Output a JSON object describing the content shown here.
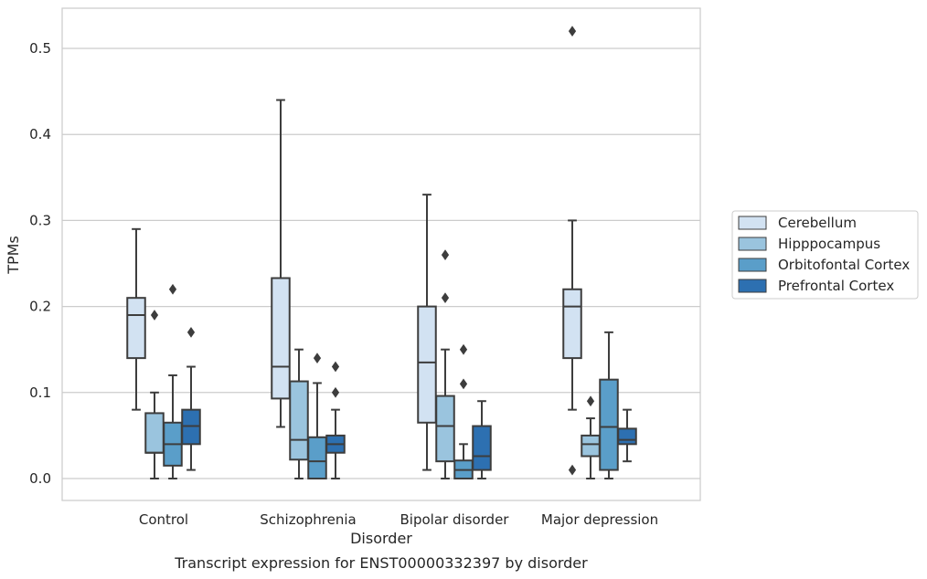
{
  "chart_data": {
    "type": "box",
    "caption": "Transcript expression for ENST00000332397 by disorder",
    "xlabel": "Disorder",
    "ylabel": "TPMs",
    "ylim": [
      -0.025,
      0.548
    ],
    "yticks": [
      "0.0",
      "0.1",
      "0.2",
      "0.3",
      "0.4",
      "0.5"
    ],
    "ytick_values": [
      0.0,
      0.1,
      0.2,
      0.3,
      0.4,
      0.5
    ],
    "grid": true,
    "legend_position": "right",
    "categories": [
      "Control",
      "Schizophrenia",
      "Bipolar disorder",
      "Major depression"
    ],
    "series": [
      {
        "name": "Cerebellum",
        "color": "#d2e2f2",
        "boxes": [
          {
            "whisker_low": 0.08,
            "q1": 0.14,
            "median": 0.19,
            "q3": 0.21,
            "whisker_high": 0.29,
            "outliers": []
          },
          {
            "whisker_low": 0.06,
            "q1": 0.093,
            "median": 0.13,
            "q3": 0.233,
            "whisker_high": 0.44,
            "outliers": []
          },
          {
            "whisker_low": 0.01,
            "q1": 0.065,
            "median": 0.135,
            "q3": 0.2,
            "whisker_high": 0.33,
            "outliers": []
          },
          {
            "whisker_low": 0.08,
            "q1": 0.14,
            "median": 0.2,
            "q3": 0.22,
            "whisker_high": 0.3,
            "outliers": [
              0.01,
              0.52
            ]
          }
        ]
      },
      {
        "name": "Hipppocampus",
        "color": "#9ac4de",
        "boxes": [
          {
            "whisker_low": 0.0,
            "q1": 0.03,
            "median": 0.03,
            "q3": 0.076,
            "whisker_high": 0.1,
            "outliers": [
              0.19
            ]
          },
          {
            "whisker_low": 0.0,
            "q1": 0.022,
            "median": 0.045,
            "q3": 0.113,
            "whisker_high": 0.15,
            "outliers": []
          },
          {
            "whisker_low": 0.0,
            "q1": 0.02,
            "median": 0.061,
            "q3": 0.096,
            "whisker_high": 0.15,
            "outliers": [
              0.21,
              0.26
            ]
          },
          {
            "whisker_low": 0.0,
            "q1": 0.026,
            "median": 0.04,
            "q3": 0.05,
            "whisker_high": 0.07,
            "outliers": [
              0.09
            ]
          }
        ]
      },
      {
        "name": "Orbitofontal Cortex",
        "color": "#5a9ec9",
        "boxes": [
          {
            "whisker_low": 0.0,
            "q1": 0.015,
            "median": 0.04,
            "q3": 0.065,
            "whisker_high": 0.12,
            "outliers": [
              0.22
            ]
          },
          {
            "whisker_low": 0.0,
            "q1": 0.0,
            "median": 0.02,
            "q3": 0.048,
            "whisker_high": 0.111,
            "outliers": [
              0.14
            ]
          },
          {
            "whisker_low": 0.0,
            "q1": 0.0,
            "median": 0.01,
            "q3": 0.021,
            "whisker_high": 0.04,
            "outliers": [
              0.11,
              0.15
            ]
          },
          {
            "whisker_low": 0.0,
            "q1": 0.01,
            "median": 0.06,
            "q3": 0.115,
            "whisker_high": 0.17,
            "outliers": []
          }
        ]
      },
      {
        "name": "Prefrontal Cortex",
        "color": "#2d70b1",
        "boxes": [
          {
            "whisker_low": 0.01,
            "q1": 0.04,
            "median": 0.061,
            "q3": 0.08,
            "whisker_high": 0.13,
            "outliers": [
              0.17
            ]
          },
          {
            "whisker_low": 0.0,
            "q1": 0.03,
            "median": 0.04,
            "q3": 0.05,
            "whisker_high": 0.08,
            "outliers": [
              0.1,
              0.13
            ]
          },
          {
            "whisker_low": 0.0,
            "q1": 0.01,
            "median": 0.026,
            "q3": 0.061,
            "whisker_high": 0.09,
            "outliers": []
          },
          {
            "whisker_low": 0.02,
            "q1": 0.04,
            "median": 0.045,
            "q3": 0.058,
            "whisker_high": 0.08,
            "outliers": []
          }
        ]
      }
    ]
  }
}
